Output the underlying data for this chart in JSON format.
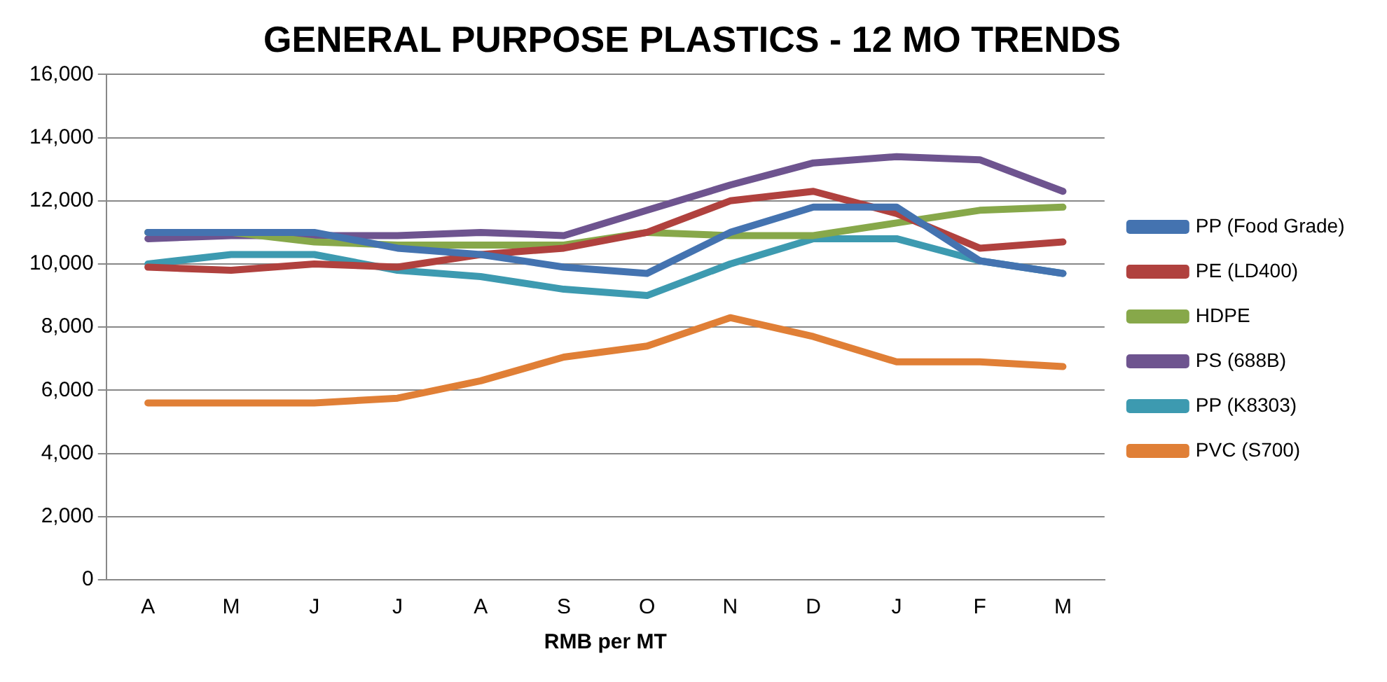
{
  "chart_data": {
    "type": "line",
    "title": "GENERAL PURPOSE PLASTICS - 12 MO TRENDS",
    "xlabel": "RMB per MT",
    "categories": [
      "A",
      "M",
      "J",
      "J",
      "A",
      "S",
      "O",
      "N",
      "D",
      "J",
      "F",
      "M"
    ],
    "series": [
      {
        "name": "PP (Food Grade)",
        "color": "#4473b0",
        "values": [
          11000,
          11000,
          11000,
          10500,
          10300,
          9900,
          9700,
          11000,
          11800,
          11800,
          10100,
          9700
        ]
      },
      {
        "name": "PE (LD400)",
        "color": "#b0413e",
        "values": [
          9900,
          9800,
          10000,
          9900,
          10300,
          10500,
          11000,
          12000,
          12300,
          11600,
          10500,
          10700
        ]
      },
      {
        "name": "HDPE",
        "color": "#87a84a",
        "values": [
          11000,
          11000,
          10700,
          10600,
          10600,
          10600,
          11000,
          10900,
          10900,
          11300,
          11700,
          11800
        ]
      },
      {
        "name": "PS (688B)",
        "color": "#6e548f",
        "values": [
          10800,
          10900,
          10900,
          10900,
          11000,
          10900,
          11700,
          12500,
          13200,
          13400,
          13300,
          12300
        ]
      },
      {
        "name": "PP (K8303)",
        "color": "#3d9ab0",
        "values": [
          10000,
          10300,
          10300,
          9800,
          9600,
          9200,
          9000,
          10000,
          10800,
          10800,
          10100,
          9700
        ]
      },
      {
        "name": "PVC (S700)",
        "color": "#e07f36",
        "values": [
          5600,
          5600,
          5600,
          5750,
          6300,
          7050,
          7400,
          8300,
          7700,
          6900,
          6900,
          6750
        ]
      }
    ],
    "ylim": [
      0,
      16000
    ],
    "yticks": [
      {
        "value": 0,
        "label": "0"
      },
      {
        "value": 2000,
        "label": "2,000"
      },
      {
        "value": 4000,
        "label": "4,000"
      },
      {
        "value": 6000,
        "label": "6,000"
      },
      {
        "value": 8000,
        "label": "8,000"
      },
      {
        "value": 10000,
        "label": "10,000"
      },
      {
        "value": 12000,
        "label": "12,000"
      },
      {
        "value": 14000,
        "label": "14,000"
      },
      {
        "value": 16000,
        "label": "16,000"
      }
    ],
    "grid": "y",
    "legend": "right",
    "marker": "none",
    "line_style": "solid"
  }
}
